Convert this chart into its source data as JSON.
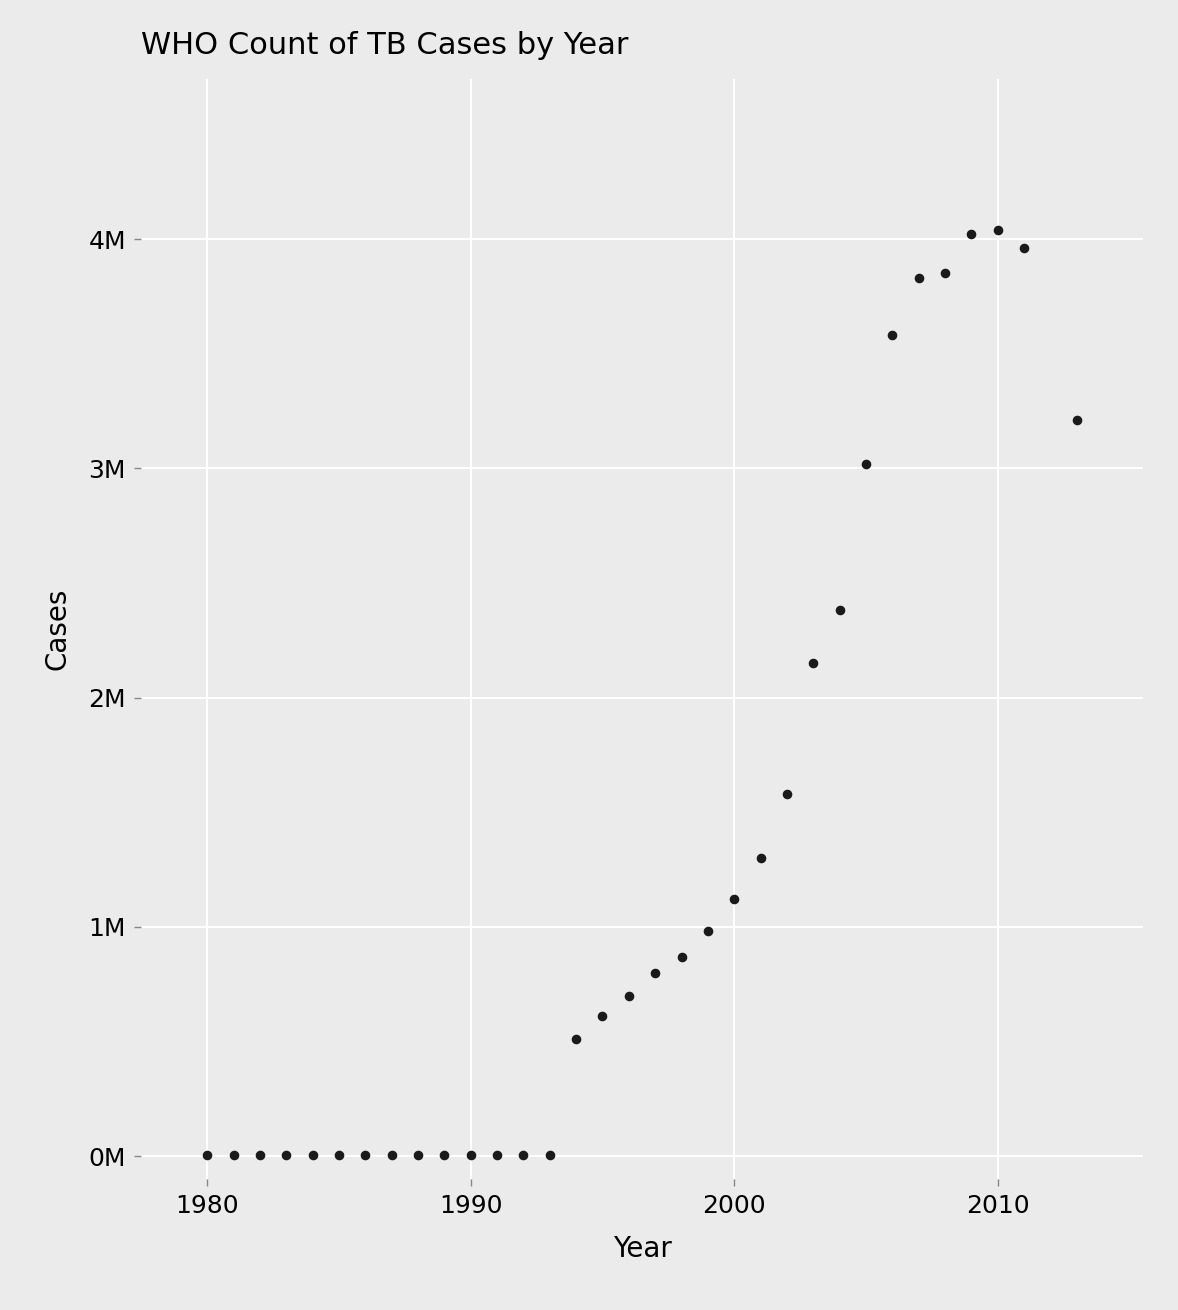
{
  "title": "WHO Count of TB Cases by Year",
  "xlabel": "Year",
  "ylabel": "Cases",
  "background_color": "#EBEBEB",
  "grid_color": "#FFFFFF",
  "point_color": "#1a1a1a",
  "point_size": 35,
  "years": [
    1980,
    1981,
    1982,
    1983,
    1984,
    1985,
    1986,
    1987,
    1988,
    1989,
    1990,
    1991,
    1992,
    1993,
    1994,
    1995,
    1996,
    1997,
    1998,
    1999,
    2000,
    2001,
    2002,
    2003,
    2004,
    2005,
    2006,
    2007,
    2008,
    2009,
    2010,
    2011,
    2013
  ],
  "cases": [
    3000,
    3500,
    3000,
    3500,
    3500,
    3000,
    3500,
    3000,
    3500,
    3000,
    3500,
    3000,
    3000,
    3000,
    510000,
    610000,
    700000,
    800000,
    870000,
    980000,
    1120000,
    1300000,
    1580000,
    2150000,
    2380000,
    3020000,
    3580000,
    3830000,
    3850000,
    4020000,
    4040000,
    3960000,
    3210000
  ],
  "xlim": [
    1977.5,
    2015.5
  ],
  "ylim": [
    -100000,
    4700000
  ],
  "ytick_values": [
    0,
    1000000,
    2000000,
    3000000,
    4000000
  ],
  "ytick_labels": [
    "0M",
    "1M",
    "2M",
    "3M",
    "4M"
  ],
  "xtick_values": [
    1980,
    1990,
    2000,
    2010
  ],
  "title_fontsize": 22,
  "axis_label_fontsize": 20,
  "tick_fontsize": 18
}
